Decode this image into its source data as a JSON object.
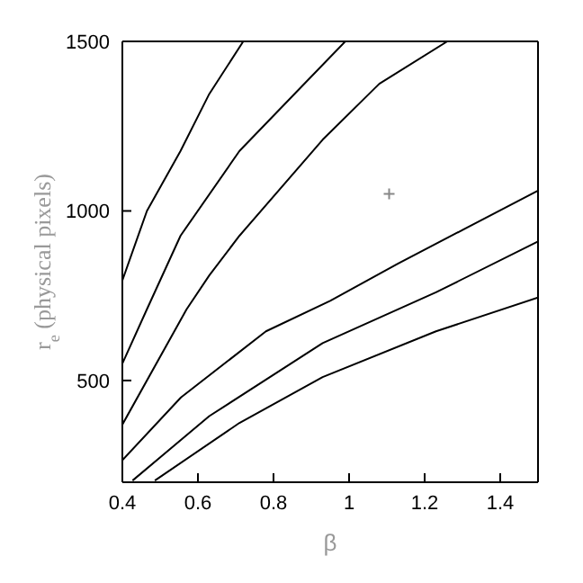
{
  "chart_data": {
    "type": "line",
    "xlabel": "β",
    "ylabel": "r$_{e}$ (physical pixels)",
    "xlim": [
      0.4,
      1.5
    ],
    "ylim": [
      200,
      1500
    ],
    "xticks": [
      0.4,
      0.6,
      0.8,
      1,
      1.2,
      1.4
    ],
    "yticks": [
      500,
      1000,
      1500
    ],
    "marker": "none",
    "line_style": "solid",
    "series": [
      {
        "color": "#000000",
        "x": [
          0.4,
          0.465,
          0.554,
          0.63,
          0.72
        ],
        "values": [
          795,
          1000,
          1177,
          1345,
          1500
        ]
      },
      {
        "color": "#000000",
        "x": [
          0.4,
          0.465,
          0.554,
          0.71,
          0.86,
          0.99
        ],
        "values": [
          550,
          710,
          927,
          1177,
          1350,
          1500
        ]
      },
      {
        "color": "#000000",
        "x": [
          0.4,
          0.57,
          0.63,
          0.71,
          0.93,
          1.08,
          1.26
        ],
        "values": [
          370,
          710,
          810,
          927,
          1210,
          1375,
          1500
        ]
      },
      {
        "color": "#000000",
        "x": [
          0.4,
          0.555,
          0.78,
          0.95,
          1.13,
          1.5
        ],
        "values": [
          265,
          450,
          645,
          735,
          845,
          1060
        ]
      },
      {
        "color": "#000000",
        "x": [
          0.427,
          0.63,
          0.93,
          1.23,
          1.5
        ],
        "values": [
          205,
          395,
          610,
          760,
          910
        ]
      },
      {
        "color": "#000000",
        "x": [
          0.486,
          0.71,
          0.93,
          1.23,
          1.5
        ],
        "values": [
          205,
          375,
          510,
          645,
          745
        ]
      },
      {
        "type": "scatter",
        "marker": "cross",
        "color": "#888888",
        "x": [
          1.106
        ],
        "values": [
          1050
        ]
      }
    ]
  }
}
